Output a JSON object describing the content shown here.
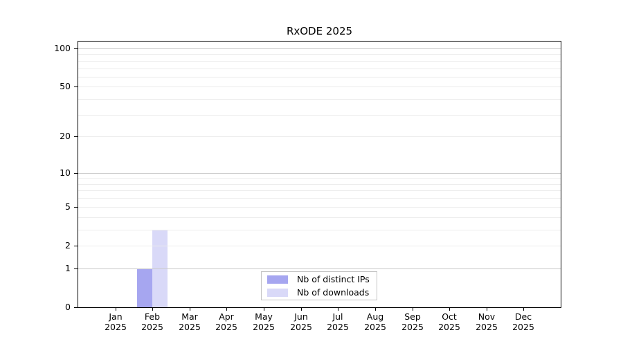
{
  "chart_data": {
    "type": "bar",
    "title": "RxODE 2025",
    "months": [
      "Jan",
      "Feb",
      "Mar",
      "Apr",
      "May",
      "Jun",
      "Jul",
      "Aug",
      "Sep",
      "Oct",
      "Nov",
      "Dec"
    ],
    "year_label": "2025",
    "categories": [
      "Jan 2025",
      "Feb 2025",
      "Mar 2025",
      "Apr 2025",
      "May 2025",
      "Jun 2025",
      "Jul 2025",
      "Aug 2025",
      "Sep 2025",
      "Oct 2025",
      "Nov 2025",
      "Dec 2025"
    ],
    "series": [
      {
        "name": "Nb of distinct IPs",
        "color": "#a6a6f0",
        "values": [
          0,
          1,
          0,
          0,
          0,
          0,
          0,
          0,
          0,
          0,
          0,
          0
        ]
      },
      {
        "name": "Nb of downloads",
        "color": "#d9d9f8",
        "values": [
          0,
          3,
          0,
          0,
          0,
          0,
          0,
          0,
          0,
          0,
          0,
          0
        ]
      }
    ],
    "yscale": "log1p",
    "ylim": [
      0,
      100
    ],
    "yticks": [
      0,
      1,
      2,
      5,
      10,
      20,
      50,
      100
    ],
    "gridlines": {
      "major": [
        1,
        10,
        100
      ],
      "minor": [
        2,
        3,
        4,
        5,
        6,
        7,
        8,
        9,
        20,
        30,
        40,
        50,
        60,
        70,
        80,
        90
      ]
    },
    "grid": true,
    "legend_position": "bottom-center"
  }
}
